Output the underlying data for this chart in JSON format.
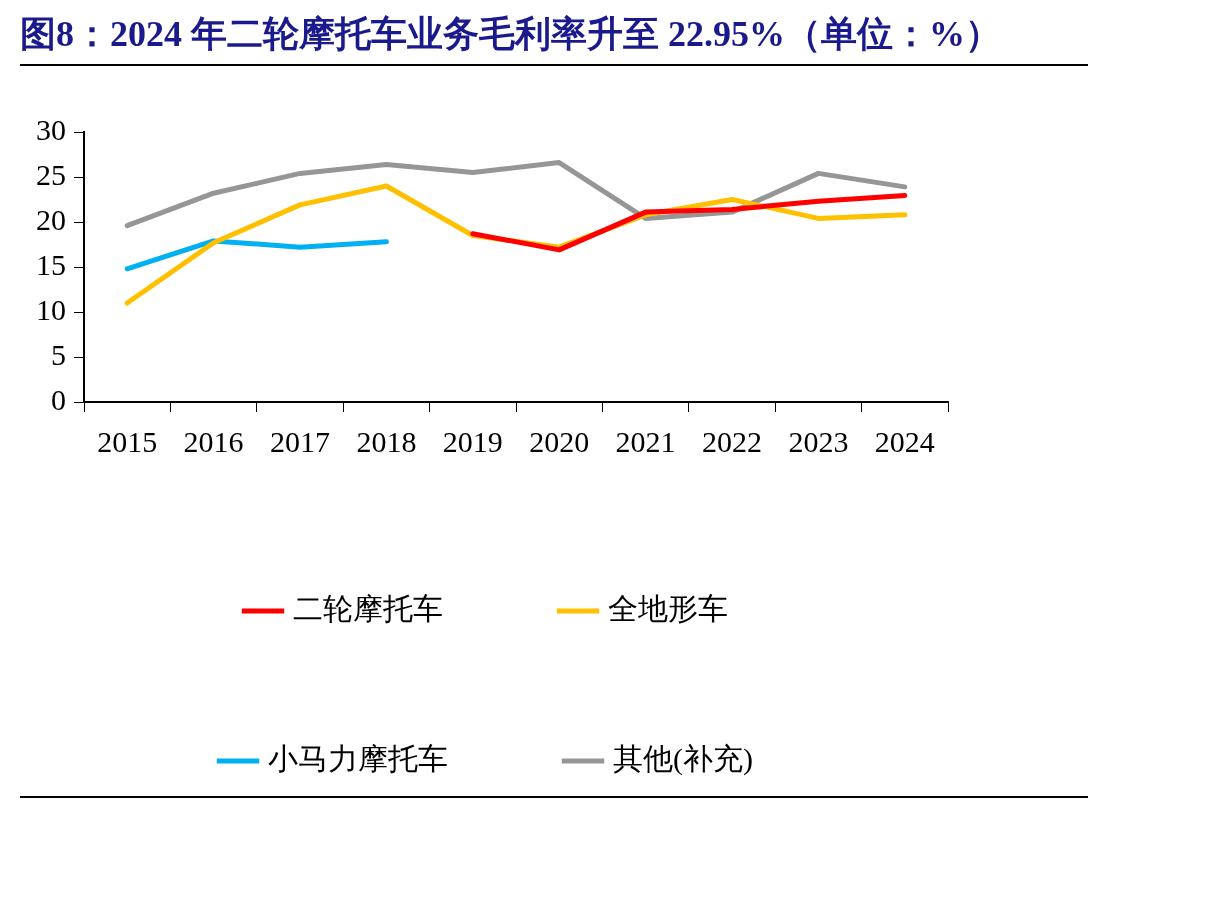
{
  "chart_data": {
    "type": "line",
    "title": "图8：2024 年二轮摩托车业务毛利率升至 22.95%（单位：%）",
    "categories": [
      "2015",
      "2016",
      "2017",
      "2018",
      "2019",
      "2020",
      "2021",
      "2022",
      "2023",
      "2024"
    ],
    "series": [
      {
        "name": "二轮摩托车",
        "color": "#ff0000",
        "values": [
          null,
          null,
          null,
          null,
          18.7,
          16.9,
          21.1,
          21.4,
          22.3,
          22.95
        ]
      },
      {
        "name": "全地形车",
        "color": "#ffc000",
        "values": [
          11.0,
          17.7,
          21.9,
          24.0,
          18.5,
          17.2,
          20.8,
          22.5,
          20.4,
          20.8
        ]
      },
      {
        "name": "小马力摩托车",
        "color": "#00b0f0",
        "values": [
          14.8,
          17.9,
          17.2,
          17.8,
          null,
          null,
          null,
          null,
          null,
          null
        ]
      },
      {
        "name": "其他(补充)",
        "color": "#969696",
        "values": [
          19.6,
          23.2,
          25.4,
          26.4,
          25.5,
          26.6,
          20.4,
          21.1,
          25.4,
          23.9
        ]
      }
    ],
    "ylim": [
      0,
      30
    ],
    "yticks": [
      0,
      5,
      10,
      15,
      20,
      25,
      30
    ],
    "grid": false,
    "legend": "bottom",
    "marker": "none",
    "line_style": "solid"
  }
}
